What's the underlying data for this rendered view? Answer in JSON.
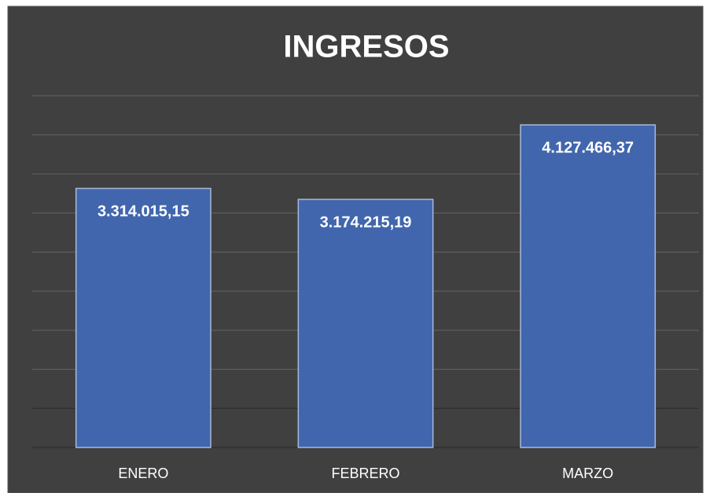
{
  "chart_data": {
    "type": "bar",
    "title": "INGRESOS",
    "categories": [
      "ENERO",
      "FEBRERO",
      "MARZO"
    ],
    "values": [
      3314015.15,
      3174215.19,
      4127466.37
    ],
    "value_labels": [
      "3.314.015,15",
      "3.174.215,19",
      "4.127.466,37"
    ],
    "color": "#4166ad",
    "ylim": [
      0,
      4500000
    ],
    "yticks": [
      0,
      500000,
      1000000,
      1500000,
      2000000,
      2500000,
      3000000,
      3500000,
      4000000,
      4500000
    ],
    "grid": true
  }
}
